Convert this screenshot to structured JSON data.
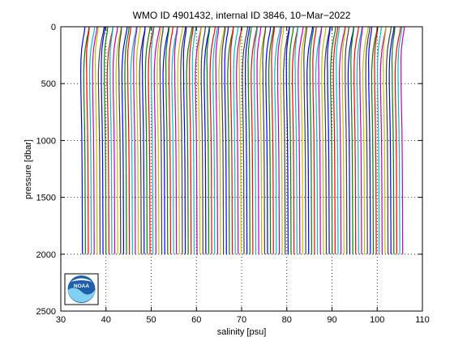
{
  "chart_data": {
    "type": "line",
    "title": "WMO ID 4901432, internal ID 3846, 10−Mar−2022",
    "xlabel": "salinity [psu]",
    "ylabel": "pressure [dbar]",
    "xlim": [
      30,
      110
    ],
    "ylim": [
      0,
      2500
    ],
    "y_reversed": true,
    "xticks": [
      30,
      40,
      50,
      60,
      70,
      80,
      90,
      100,
      110
    ],
    "yticks": [
      0,
      500,
      1000,
      1500,
      2000,
      2500
    ],
    "grid": true,
    "profile_count": 110,
    "profile_offset_psu": 0.65,
    "pressure_range": [
      0,
      2000
    ],
    "first_profile": {
      "pressure": [
        0,
        50,
        100,
        200,
        300,
        400,
        500,
        600,
        700,
        800,
        900,
        1000,
        1200,
        1400,
        1600,
        1800,
        2000
      ],
      "salinity": [
        35.35,
        35.2,
        34.95,
        34.6,
        34.45,
        34.42,
        34.43,
        34.47,
        34.52,
        34.57,
        34.62,
        34.65,
        34.7,
        34.73,
        34.75,
        34.77,
        34.79
      ]
    },
    "series_colors": [
      "#0000ff",
      "#008000",
      "#ff0000",
      "#00bfbf",
      "#bf00bf",
      "#bfbf00",
      "#404040"
    ]
  },
  "logo": {
    "text": "NOAA"
  }
}
